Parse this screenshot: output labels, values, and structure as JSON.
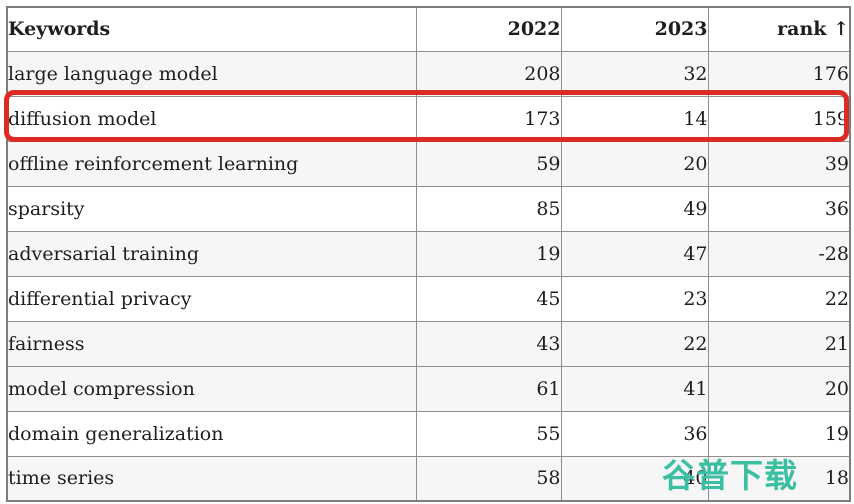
{
  "chart_data": {
    "type": "table",
    "title": "",
    "columns": [
      "Keywords",
      "2022",
      "2023",
      "rank ↑"
    ],
    "rows": [
      [
        "large language model",
        208,
        32,
        176
      ],
      [
        "diffusion model",
        173,
        14,
        159
      ],
      [
        "offline reinforcement learning",
        59,
        20,
        39
      ],
      [
        "sparsity",
        85,
        49,
        36
      ],
      [
        "adversarial training",
        19,
        47,
        -28
      ],
      [
        "differential privacy",
        45,
        23,
        22
      ],
      [
        "fairness",
        43,
        22,
        21
      ],
      [
        "model compression",
        61,
        41,
        20
      ],
      [
        "domain generalization",
        55,
        36,
        19
      ],
      [
        "time series",
        58,
        40,
        18
      ]
    ],
    "layout_hints": {
      "grid": true,
      "numeric_columns_right_aligned": true,
      "highlighted_row": "diffusion model"
    }
  },
  "presentation": {
    "shaded_row_indexes": [
      0,
      2,
      4,
      6,
      7,
      9
    ],
    "highlighted_row_index": 1,
    "highlight_border_color": "#dc2b22",
    "stripe_color": "#f6f6f6",
    "grid_border_color": "#8f8f8f",
    "text_color": "#1e1e1e"
  },
  "watermark": {
    "text": "谷普下载",
    "color": "#3bbfa3"
  }
}
